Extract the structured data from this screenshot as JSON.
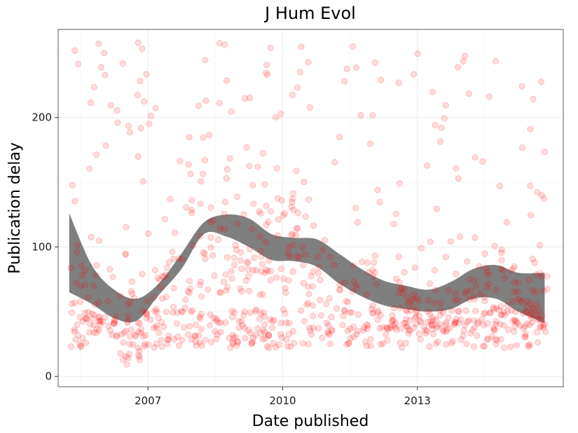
{
  "chart_data": {
    "type": "scatter",
    "title": "J Hum Evol",
    "xlabel": "Date published",
    "ylabel": "Publication delay",
    "x_ticks": [
      "2007",
      "2010",
      "2013"
    ],
    "y_ticks": [
      "0",
      "100",
      "200"
    ],
    "xlim": [
      "2005-01-01",
      "2016-04-01"
    ],
    "ylim": [
      -8,
      268
    ],
    "grid": true,
    "point_color": "#ff0000",
    "band_color": "#7f7f7f",
    "point_x_range": [
      "2005-04-15",
      "2015-11-25"
    ],
    "point_count": 900,
    "smooth_band": {
      "x": [
        "2005-04-01",
        "2005-10-01",
        "2006-04-01",
        "2006-10-01",
        "2007-04-01",
        "2007-10-01",
        "2008-04-01",
        "2008-10-01",
        "2009-04-01",
        "2009-10-01",
        "2010-04-01",
        "2010-10-01",
        "2011-04-01",
        "2011-10-01",
        "2012-04-01",
        "2012-10-01",
        "2013-04-01",
        "2013-10-01",
        "2014-04-01",
        "2014-10-01",
        "2015-04-01",
        "2015-11-01"
      ],
      "lower": [
        65,
        56,
        45,
        43,
        63,
        83,
        110,
        108,
        100,
        90,
        89,
        85,
        72,
        62,
        55,
        52,
        50,
        52,
        60,
        60,
        50,
        41
      ],
      "upper": [
        126,
        86,
        67,
        60,
        72,
        95,
        119,
        125,
        122,
        110,
        107,
        106,
        95,
        83,
        74,
        70,
        67,
        73,
        83,
        86,
        80,
        80
      ]
    }
  }
}
